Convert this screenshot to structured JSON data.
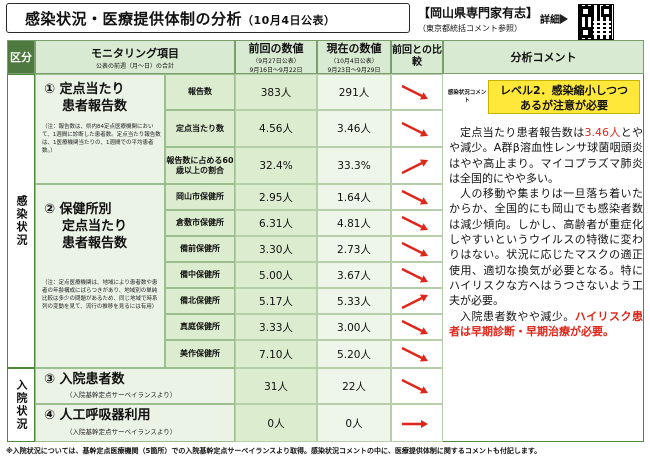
{
  "header": {
    "title": "感染状況・医療提供体制の分析",
    "date": "（10月4日公表）",
    "source_main": "【岡山県専門家有志】",
    "source_sub": "（東京都統括コメント参照）",
    "detail": "詳細"
  },
  "columns": {
    "section": "区分",
    "monitoring": "モニタリング項目",
    "monitoring_sub": "公表の前週（月～日）の合計",
    "prev": "前回の数値",
    "prev_sub1": "（9月27日公表）",
    "prev_sub2": "9月16日～9月22日",
    "cur": "現在の数値",
    "cur_sub1": "（10月4日公表）",
    "cur_sub2": "9月23日～9月29日",
    "compare": "前回との比較",
    "comment": "分析コメント"
  },
  "sections": {
    "infection": "感染状況",
    "hospital": "入院状況"
  },
  "groups": {
    "g1_title": "① 定点当たり 患者報告数",
    "g1_title_a": "① 定点当たり",
    "g1_title_b": "患者報告数",
    "g1_note": "（注：報告数は、県内84定点医療機関において、1週間に診断した患者数。定点当たり報告数は、1医療機関当たりの、1週間での平均患者数。）",
    "g2_title_a": "② 保健所別",
    "g2_title_b": "定点当たり",
    "g2_title_c": "患者報告数",
    "g2_note": "（注：定点医療機関は、地域により患者数や患者の年齢構成にばらつきがあり、地域別の単純比較は多少の問題があるため、同じ地域で時系列の変動を見て、流行の推移を見るには有用）",
    "g3_title": "③ 入院患者数",
    "g3_note": "（入院基幹定点サーベイランスより）",
    "g4_title": "④ 人工呼吸器利用",
    "g4_note": "（入院基幹定点サーベイランスより）"
  },
  "rows": [
    {
      "label": "報告数",
      "prev": "383人",
      "cur": "291人",
      "trend": "down"
    },
    {
      "label": "定点当たり数",
      "prev": "4.56人",
      "cur": "3.46人",
      "trend": "down"
    },
    {
      "label": "報告数に占める60歳以上の割合",
      "prev": "32.4%",
      "cur": "33.3%",
      "trend": "up"
    },
    {
      "label": "岡山市保健所",
      "prev": "2.95人",
      "cur": "1.64人",
      "trend": "down"
    },
    {
      "label": "倉敷市保健所",
      "prev": "6.31人",
      "cur": "4.81人",
      "trend": "down"
    },
    {
      "label": "備前保健所",
      "prev": "3.30人",
      "cur": "2.73人",
      "trend": "down"
    },
    {
      "label": "備中保健所",
      "prev": "5.00人",
      "cur": "3.67人",
      "trend": "down"
    },
    {
      "label": "備北保健所",
      "prev": "5.17人",
      "cur": "5.33人",
      "trend": "up"
    },
    {
      "label": "真庭保健所",
      "prev": "3.33人",
      "cur": "3.00人",
      "trend": "down"
    },
    {
      "label": "美作保健所",
      "prev": "7.10人",
      "cur": "5.20人",
      "trend": "down"
    },
    {
      "label": "",
      "prev": "31人",
      "cur": "22人",
      "trend": "down"
    },
    {
      "label": "",
      "prev": "0人",
      "cur": "0人",
      "trend": "flat"
    }
  ],
  "comment": {
    "level_label": "感染状況コメント",
    "level": "レベル2．感染縮小しつつあるが注意が必要",
    "p1_a": "定点当たり患者報告数は",
    "p1_red": "3.46人",
    "p1_b": "とやや減少。A群β溶血性レンサ球菌咽頭炎はやや高止まり。マイコプラズマ肺炎は全国的にやや多い。",
    "p2": "人の移動や集まりは一旦落ち着いたからか、全国的にも岡山でも感染者数は減少傾向。しかし、高齢者が重症化しやすいというウイルスの特徴に変わりはない。状況に応じたマスクの適正使用、適切な換気が必要となる。特にハイリスクな方へはうつさないよう工夫が必要。",
    "p3_a": "入院患者数やや減少。",
    "p3_red": "ハイリスク患者は早期診断・早期治療が必要。"
  },
  "footer": "※入院状況については、基幹定点医療機関（5箇所）での入院基幹定点サーベイランスより取得。感染状況コメントの中に、医療提供体制に関するコメントも付記します。",
  "colors": {
    "green": "#4f8a3a",
    "light_green": "#dceccf",
    "arrow_red": "#e0261a",
    "level_yellow": "#ffe83a"
  }
}
